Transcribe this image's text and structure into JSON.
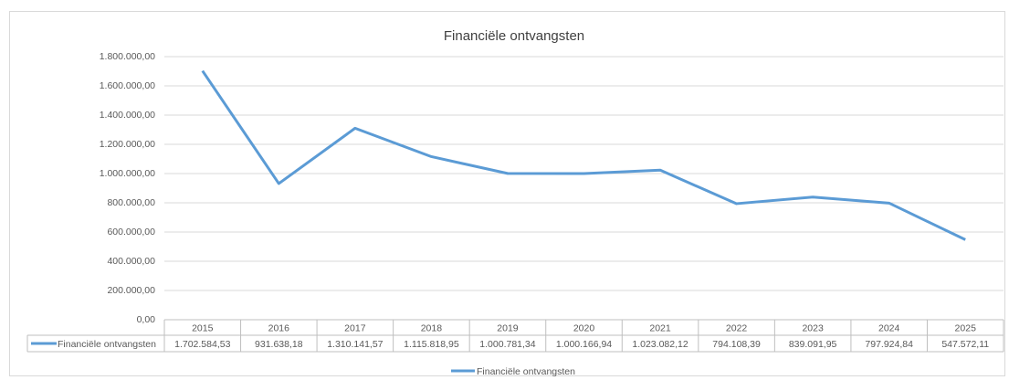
{
  "chart_data": {
    "type": "line",
    "title": "Financiële ontvangsten",
    "categories": [
      "2015",
      "2016",
      "2017",
      "2018",
      "2019",
      "2020",
      "2021",
      "2022",
      "2023",
      "2024",
      "2025"
    ],
    "series": [
      {
        "name": "Financiële ontvangsten",
        "color": "#5b9bd5",
        "values": [
          1702584.53,
          931638.18,
          1310141.57,
          1115818.95,
          1000781.34,
          1000166.94,
          1023082.12,
          794108.39,
          839091.95,
          797924.84,
          547572.11
        ],
        "value_labels": [
          "1.702.584,53",
          "931.638,18",
          "1.310.141,57",
          "1.115.818,95",
          "1.000.781,34",
          "1.000.166,94",
          "1.023.082,12",
          "794.108,39",
          "839.091,95",
          "797.924,84",
          "547.572,11"
        ]
      }
    ],
    "ylim": [
      0,
      1800000
    ],
    "yticks": [
      {
        "value": 0,
        "label": "0,00"
      },
      {
        "value": 200000,
        "label": "200.000,00"
      },
      {
        "value": 400000,
        "label": "400.000,00"
      },
      {
        "value": 600000,
        "label": "600.000,00"
      },
      {
        "value": 800000,
        "label": "800.000,00"
      },
      {
        "value": 1000000,
        "label": "1.000.000,00"
      },
      {
        "value": 1200000,
        "label": "1.200.000,00"
      },
      {
        "value": 1400000,
        "label": "1.400.000,00"
      },
      {
        "value": 1600000,
        "label": "1.600.000,00"
      },
      {
        "value": 1800000,
        "label": "1.800.000,00"
      }
    ],
    "grid": true,
    "legend": "bottom",
    "data_table": true
  }
}
